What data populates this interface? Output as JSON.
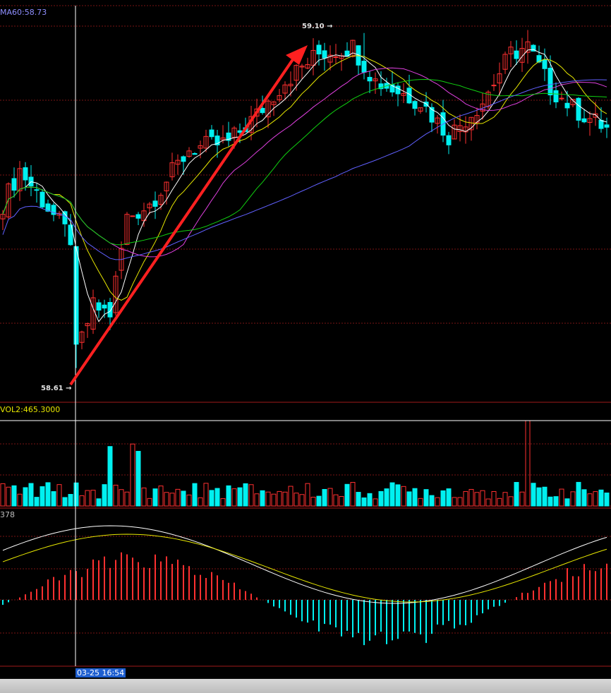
{
  "labels": {
    "ma60": "MA60:58.73",
    "vol2": "VOL2:465.3000",
    "macd": "378",
    "high": "59.10",
    "low": "58.61",
    "crosshair_time": "03-25 16:54"
  },
  "colors": {
    "background": "#000000",
    "grid": "#7a1414",
    "up": "#ff3030",
    "down": "#00f0f0",
    "ma5": "#ffffff",
    "ma10": "#e8e800",
    "ma20": "#e040e0",
    "ma30": "#10d010",
    "ma60": "#6060ff",
    "arrow": "#ff2020"
  },
  "chart_data": [
    {
      "type": "candlestick",
      "panel": "price",
      "ylim": [
        58.56,
        59.14
      ],
      "annotations": [
        "59.10",
        "58.61",
        "MA60:58.73"
      ],
      "series": [
        {
          "name": "MA60",
          "values": [
            58.73
          ]
        }
      ],
      "note_arrow": "upward trend arrow from the 58.61 low toward the 59.10 high"
    },
    {
      "type": "bar",
      "panel": "volume",
      "annotations": [
        "VOL2:465.3000"
      ]
    },
    {
      "type": "bar",
      "panel": "macd",
      "annotations": [
        "378"
      ]
    }
  ]
}
